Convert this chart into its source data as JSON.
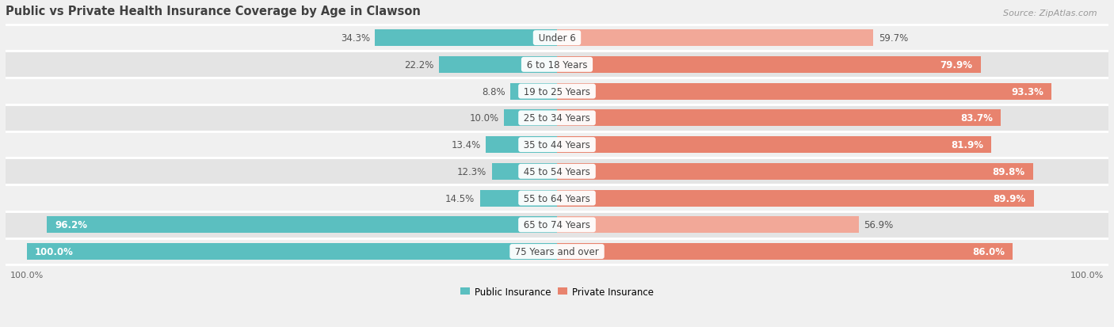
{
  "title": "Public vs Private Health Insurance Coverage by Age in Clawson",
  "source": "Source: ZipAtlas.com",
  "categories": [
    "Under 6",
    "6 to 18 Years",
    "19 to 25 Years",
    "25 to 34 Years",
    "35 to 44 Years",
    "45 to 54 Years",
    "55 to 64 Years",
    "65 to 74 Years",
    "75 Years and over"
  ],
  "public_values": [
    34.3,
    22.2,
    8.8,
    10.0,
    13.4,
    12.3,
    14.5,
    96.2,
    100.0
  ],
  "private_values": [
    59.7,
    79.9,
    93.3,
    83.7,
    81.9,
    89.8,
    89.9,
    56.9,
    86.0
  ],
  "public_color": "#5bbfc0",
  "private_color": "#e8836e",
  "private_color_light": "#f2a898",
  "row_bg_light": "#f0f0f0",
  "row_bg_dark": "#e4e4e4",
  "max_value": 100.0,
  "title_fontsize": 10.5,
  "label_fontsize": 8.5,
  "source_fontsize": 8,
  "legend_fontsize": 8.5,
  "value_fontsize": 8.5
}
